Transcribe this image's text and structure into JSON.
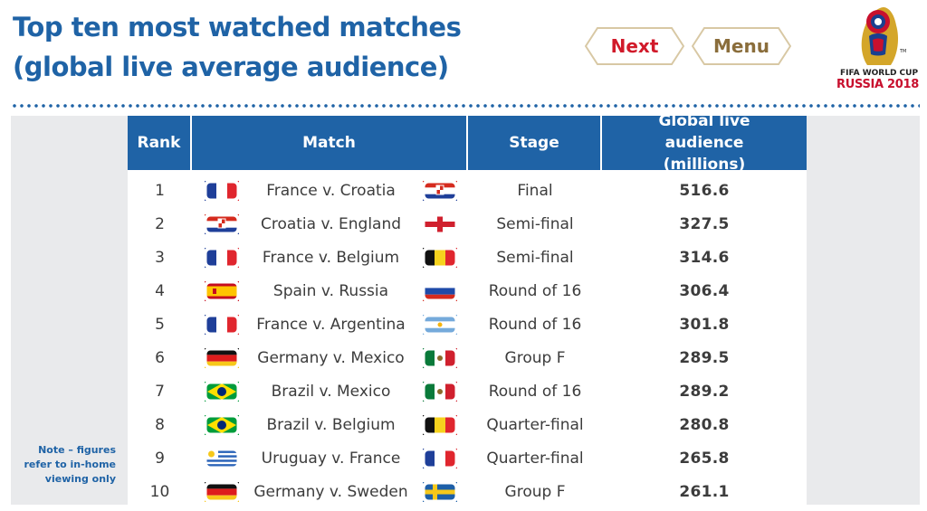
{
  "title_line1": "Top ten most watched matches",
  "title_line2": "(global live average audience)",
  "buttons": {
    "next": "Next",
    "menu": "Menu"
  },
  "logo": {
    "line1": "FIFA WORLD CUP",
    "line2": "RUSSIA 2018",
    "mark": "TM"
  },
  "table": {
    "headers": {
      "rank": "Rank",
      "match": "Match",
      "stage": "Stage",
      "audience": "Global live audience (millions)"
    },
    "rows": [
      {
        "rank": "1",
        "match": "France v. Croatia",
        "stage": "Final",
        "audience": "516.6",
        "flag_left": "france",
        "flag_right": "croatia"
      },
      {
        "rank": "2",
        "match": "Croatia v. England",
        "stage": "Semi-final",
        "audience": "327.5",
        "flag_left": "croatia",
        "flag_right": "england"
      },
      {
        "rank": "3",
        "match": "France v. Belgium",
        "stage": "Semi-final",
        "audience": "314.6",
        "flag_left": "france",
        "flag_right": "belgium"
      },
      {
        "rank": "4",
        "match": "Spain v. Russia",
        "stage": "Round of 16",
        "audience": "306.4",
        "flag_left": "spain",
        "flag_right": "russia"
      },
      {
        "rank": "5",
        "match": "France v. Argentina",
        "stage": "Round of 16",
        "audience": "301.8",
        "flag_left": "france",
        "flag_right": "argentina"
      },
      {
        "rank": "6",
        "match": "Germany v. Mexico",
        "stage": "Group F",
        "audience": "289.5",
        "flag_left": "germany",
        "flag_right": "mexico"
      },
      {
        "rank": "7",
        "match": "Brazil v. Mexico",
        "stage": "Round of 16",
        "audience": "289.2",
        "flag_left": "brazil",
        "flag_right": "mexico"
      },
      {
        "rank": "8",
        "match": "Brazil v. Belgium",
        "stage": "Quarter-final",
        "audience": "280.8",
        "flag_left": "brazil",
        "flag_right": "belgium"
      },
      {
        "rank": "9",
        "match": "Uruguay v. France",
        "stage": "Quarter-final",
        "audience": "265.8",
        "flag_left": "uruguay",
        "flag_right": "france"
      },
      {
        "rank": "10",
        "match": "Germany v. Sweden",
        "stage": "Group F",
        "audience": "261.1",
        "flag_left": "germany",
        "flag_right": "sweden"
      }
    ]
  },
  "note": {
    "line1": "Note – figures",
    "line2": "refer to in-home",
    "line3": "viewing only"
  },
  "colors": {
    "accent": "#1f63a6",
    "next": "#d11a2a",
    "menu": "#8a6d3b",
    "panel": "#e9eaec"
  }
}
